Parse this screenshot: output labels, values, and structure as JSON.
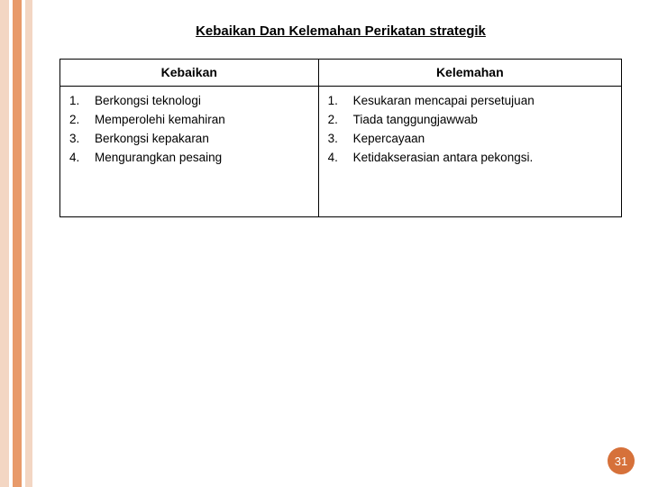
{
  "stripes": {
    "colors": [
      "#f3d6c3",
      "#ffffff",
      "#e89a6a",
      "#ffffff",
      "#f3d6c3"
    ],
    "widths": [
      10,
      4,
      10,
      4,
      8
    ]
  },
  "title": "Kebaikan Dan Kelemahan Perikatan strategik",
  "table": {
    "columns": [
      "Kebaikan",
      "Kelemahan"
    ],
    "rows": [
      {
        "numbers": [
          "1.",
          "2.",
          "3.",
          "4."
        ],
        "items": [
          "Berkongsi teknologi",
          "Memperolehi kemahiran",
          "Berkongsi kepakaran",
          "Mengurangkan pesaing"
        ]
      },
      {
        "numbers": [
          "1.",
          "2.",
          "3.",
          "4."
        ],
        "items": [
          "Kesukaran mencapai persetujuan",
          "Tiada tanggungjawwab",
          "Kepercayaan",
          "Ketidakserasian antara pekongsi."
        ]
      }
    ],
    "col_widths": [
      "46%",
      "54%"
    ]
  },
  "page_number": "31",
  "badge_color": "#d6713a",
  "text_color": "#000000",
  "background_color": "#ffffff"
}
